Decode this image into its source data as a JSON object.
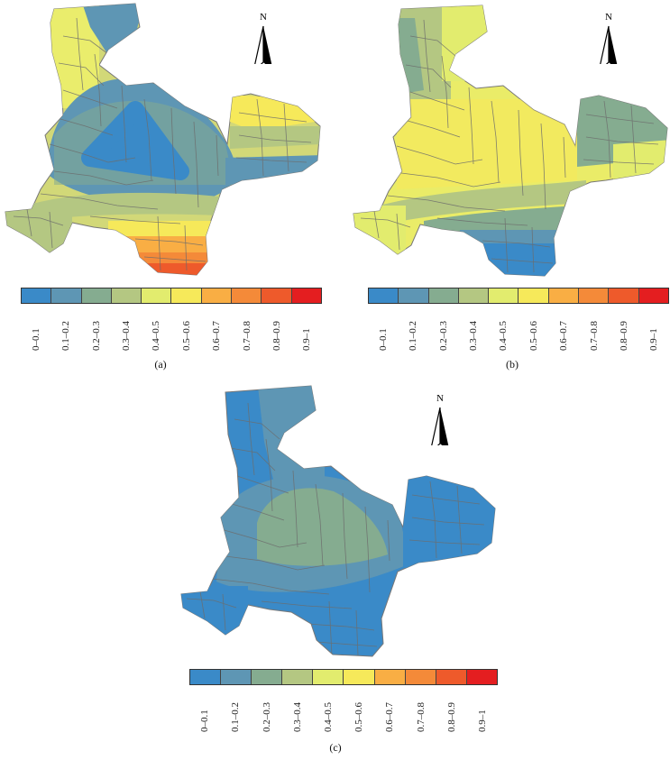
{
  "legend_classes": [
    "0–0.1",
    "0.1–0.2",
    "0.2–0.3",
    "0.3–0.4",
    "0.4–0.5",
    "0.5–0.6",
    "0.6–0.7",
    "0.7–0.8",
    "0.8–0.9",
    "0.9–1"
  ],
  "legend_colors": [
    "#3a8ac8",
    "#5e96b4",
    "#85ac90",
    "#b4c782",
    "#e2ec6e",
    "#f6e95a",
    "#f9ae44",
    "#f48a39",
    "#ee5a2b",
    "#e41e20"
  ],
  "north_label": "N",
  "panels": [
    {
      "id": "a",
      "caption": "(a)",
      "base_color": "#d2d878",
      "zones": [
        {
          "fill": "#3a8ac8",
          "desc_class": "0–0.1"
        },
        {
          "fill": "#5e96b4",
          "desc_class": "0.1–0.2"
        },
        {
          "fill": "#85ac90",
          "desc_class": "0.2–0.3"
        },
        {
          "fill": "#b4c782",
          "desc_class": "0.3–0.4"
        },
        {
          "fill": "#e2ec6e",
          "desc_class": "0.4–0.5"
        },
        {
          "fill": "#f6e95a",
          "desc_class": "0.5–0.6"
        },
        {
          "fill": "#f9ae44",
          "desc_class": "0.6–0.7"
        },
        {
          "fill": "#f48a39",
          "desc_class": "0.7–0.8"
        },
        {
          "fill": "#ee5a2b",
          "desc_class": "0.8–0.9"
        }
      ]
    },
    {
      "id": "b",
      "caption": "(b)",
      "base_color": "#eaec68",
      "zones": [
        {
          "fill": "#3a8ac8",
          "desc_class": "0–0.1"
        },
        {
          "fill": "#5e96b4",
          "desc_class": "0.1–0.2"
        },
        {
          "fill": "#85ac90",
          "desc_class": "0.2–0.3"
        },
        {
          "fill": "#b4c782",
          "desc_class": "0.3–0.4"
        },
        {
          "fill": "#e2ec6e",
          "desc_class": "0.4–0.5"
        },
        {
          "fill": "#f6e95a",
          "desc_class": "0.5–0.6"
        }
      ]
    },
    {
      "id": "c",
      "caption": "(c)",
      "base_color": "#3a8ac8",
      "zones": [
        {
          "fill": "#3a8ac8",
          "desc_class": "0–0.1"
        },
        {
          "fill": "#5e96b4",
          "desc_class": "0.1–0.2"
        },
        {
          "fill": "#85ac90",
          "desc_class": "0.2–0.3"
        }
      ]
    }
  ]
}
